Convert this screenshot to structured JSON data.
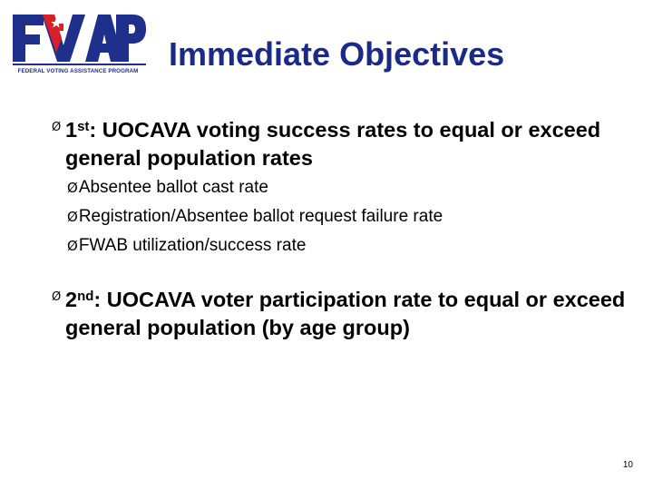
{
  "logo": {
    "wordmark": "FVAP",
    "tagline": "FEDERAL VOTING ASSISTANCE PROGRAM",
    "colors": {
      "navy": "#1f2f8c",
      "red": "#d8202a"
    }
  },
  "title": "Immediate Objectives",
  "bullets": [
    {
      "marker": "Ø",
      "ordinal": "1",
      "ordinal_suffix": "st",
      "text": ": UOCAVA voting success rates to equal or exceed general population rates",
      "sub_items": [
        {
          "marker": "Ø",
          "text": "Absentee ballot cast rate"
        },
        {
          "marker": "Ø",
          "text": "Registration/Absentee ballot request failure rate"
        },
        {
          "marker": "Ø",
          "text": "FWAB utilization/success rate"
        }
      ]
    },
    {
      "marker": "Ø",
      "ordinal": "2",
      "ordinal_suffix": "nd",
      "text": ": UOCAVA voter participation rate to equal or exceed general population (by age group)"
    }
  ],
  "page_number": "10",
  "colors": {
    "title": "#1a2a86",
    "text": "#000000",
    "background": "#ffffff"
  }
}
